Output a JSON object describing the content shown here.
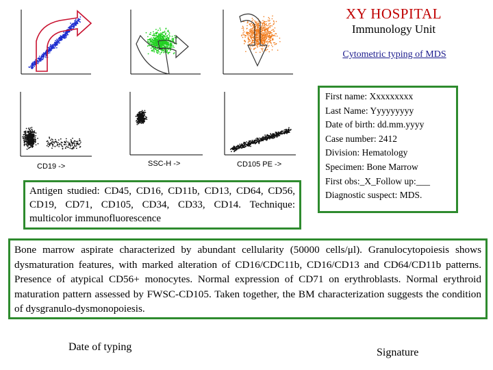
{
  "header": {
    "hospital": "XY HOSPITAL",
    "unit": "Immunology Unit",
    "subtitle": "Cytometric typing of MDS"
  },
  "patient": {
    "first_name": "First name: Xxxxxxxxx",
    "last_name": "Last Name: Yyyyyyyyy",
    "dob": "Date of birth:  dd.mm.yyyy",
    "case": "Case number: 2412",
    "division": "Division:  Hematology",
    "specimen": "Specimen: Bone Marrow",
    "obs": "First obs:_X_Follow up:___",
    "suspect": "Diagnostic suspect: MDS."
  },
  "plots": {
    "x_labels": [
      "CD19 ->",
      "SSC-H ->",
      "CD105 PE ->"
    ],
    "colors": {
      "blue": "#1f2fd0",
      "green": "#22d022",
      "orange": "#f07a1a",
      "black": "#111111",
      "arrow_red": "#c8102e"
    }
  },
  "antigen": {
    "text": "Antigen studied: CD45, CD16, CD11b, CD13, CD64, CD56, CD19, CD71, CD105, CD34, CD33, CD14. Technique: multicolor immunofluorescence"
  },
  "report": {
    "text": "Bone marrow aspirate characterized by abundant cellularity (50000 cells/μl). Granulocytopoiesis shows dysmaturation features, with marked alteration of CD16/CDC11b, CD16/CD13 and CD64/CD11b patterns. Presence of atypical CD56+ monocytes. Normal expression of CD71 on erythroblasts. Normal erythroid maturation pattern assessed by FWSC-CD105. Taken together, the BM characterization suggests the condition of dysgranulo-dysmonopoiesis."
  },
  "footer": {
    "date_label": "Date of typing",
    "signature_label": "Signature"
  }
}
